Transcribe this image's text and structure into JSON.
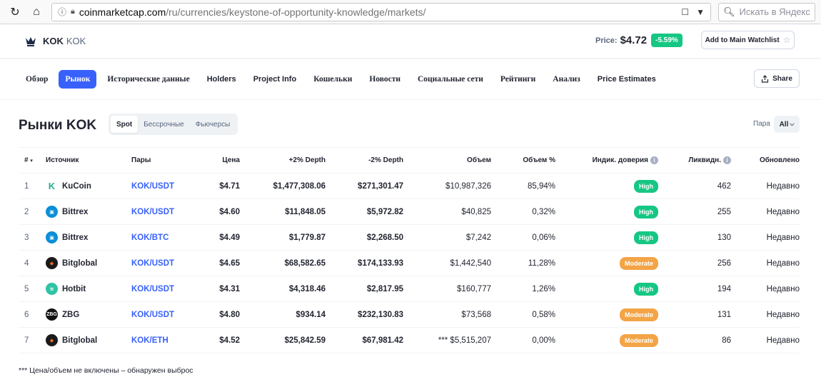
{
  "browser": {
    "url_host": "coinmarketcap.com",
    "url_path": "/ru/currencies/keystone-of-opportunity-knowledge/markets/",
    "search_placeholder": "Искать в Яндекс"
  },
  "coin": {
    "name": "KOK",
    "symbol": "KOK",
    "logo_text": "KOK",
    "price_label": "Price:",
    "price": "$4.72",
    "change": "-5.59%",
    "watchlist_label": "Add to Main Watchlist"
  },
  "tabs": [
    {
      "label": "Обзор",
      "serif": true
    },
    {
      "label": "Рынок",
      "serif": true,
      "active": true
    },
    {
      "label": "Исторические данные",
      "serif": true
    },
    {
      "label": "Holders",
      "serif": false
    },
    {
      "label": "Project Info",
      "serif": false
    },
    {
      "label": "Кошельки",
      "serif": true
    },
    {
      "label": "Новости",
      "serif": true
    },
    {
      "label": "Социальные сети",
      "serif": true
    },
    {
      "label": "Рейтинги",
      "serif": true
    },
    {
      "label": "Анализ",
      "serif": true
    },
    {
      "label": "Price Estimates",
      "serif": false
    }
  ],
  "share_label": "Share",
  "markets": {
    "title": "Рынки KOK",
    "segments": [
      "Spot",
      "Бессрочные",
      "Фьючерсы"
    ],
    "active_segment": "Spot",
    "pair_label": "Пара",
    "pair_value": "All"
  },
  "table": {
    "headers": [
      "#",
      "Источник",
      "Пары",
      "Цена",
      "+2% Depth",
      "-2% Depth",
      "Объем",
      "Объем %",
      "Индик. доверия",
      "Ликвидн.",
      "Обновлено"
    ],
    "rows": [
      {
        "n": "1",
        "exchange": "KuCoin",
        "icon_color": "#ffffff",
        "icon_fg": "#23af91",
        "icon_glyph": "K",
        "pair": "KOK/USDT",
        "price": "$4.71",
        "plus": "$1,477,308.06",
        "minus": "$271,301.47",
        "volume": "$10,987,326",
        "vol_pct": "85,94%",
        "trust": "High",
        "trust_color": "#16c784",
        "liq": "462",
        "updated": "Недавно"
      },
      {
        "n": "2",
        "exchange": "Bittrex",
        "icon_color": "#0b8fd8",
        "icon_fg": "#ffffff",
        "icon_glyph": "▣",
        "pair": "KOK/USDT",
        "price": "$4.60",
        "plus": "$11,848.05",
        "minus": "$5,972.82",
        "volume": "$40,825",
        "vol_pct": "0,32%",
        "trust": "High",
        "trust_color": "#16c784",
        "liq": "255",
        "updated": "Недавно"
      },
      {
        "n": "3",
        "exchange": "Bittrex",
        "icon_color": "#0b8fd8",
        "icon_fg": "#ffffff",
        "icon_glyph": "▣",
        "pair": "KOK/BTC",
        "price": "$4.49",
        "plus": "$1,779.87",
        "minus": "$2,268.50",
        "volume": "$7,242",
        "vol_pct": "0,06%",
        "trust": "High",
        "trust_color": "#16c784",
        "liq": "130",
        "updated": "Недавно"
      },
      {
        "n": "4",
        "exchange": "Bitglobal",
        "icon_color": "#1a1a1a",
        "icon_fg": "#f26c22",
        "icon_glyph": "◆",
        "pair": "KOK/USDT",
        "price": "$4.65",
        "plus": "$68,582.65",
        "minus": "$174,133.93",
        "volume": "$1,442,540",
        "vol_pct": "11,28%",
        "trust": "Moderate",
        "trust_color": "#f3a447",
        "liq": "256",
        "updated": "Недавно"
      },
      {
        "n": "5",
        "exchange": "Hotbit",
        "icon_color": "#30c3a6",
        "icon_fg": "#ffffff",
        "icon_glyph": "≋",
        "pair": "KOK/USDT",
        "price": "$4.31",
        "plus": "$4,318.46",
        "minus": "$2,817.95",
        "volume": "$160,777",
        "vol_pct": "1,26%",
        "trust": "High",
        "trust_color": "#16c784",
        "liq": "194",
        "updated": "Недавно"
      },
      {
        "n": "6",
        "exchange": "ZBG",
        "icon_color": "#111111",
        "icon_fg": "#ffffff",
        "icon_glyph": "ZBG",
        "pair": "KOK/USDT",
        "price": "$4.80",
        "plus": "$934.14",
        "minus": "$232,130.83",
        "volume": "$73,568",
        "vol_pct": "0,58%",
        "trust": "Moderate",
        "trust_color": "#f3a447",
        "liq": "131",
        "updated": "Недавно"
      },
      {
        "n": "7",
        "exchange": "Bitglobal",
        "icon_color": "#1a1a1a",
        "icon_fg": "#f26c22",
        "icon_glyph": "◆",
        "pair": "KOK/ETH",
        "price": "$4.52",
        "plus": "$25,842.59",
        "minus": "$67,981.42",
        "volume": "*** $5,515,207",
        "vol_pct": "0,00%",
        "trust": "Moderate",
        "trust_color": "#f3a447",
        "liq": "86",
        "updated": "Недавно"
      }
    ]
  },
  "footnote": "*** Цена/объем не включены – обнаружен выброс"
}
